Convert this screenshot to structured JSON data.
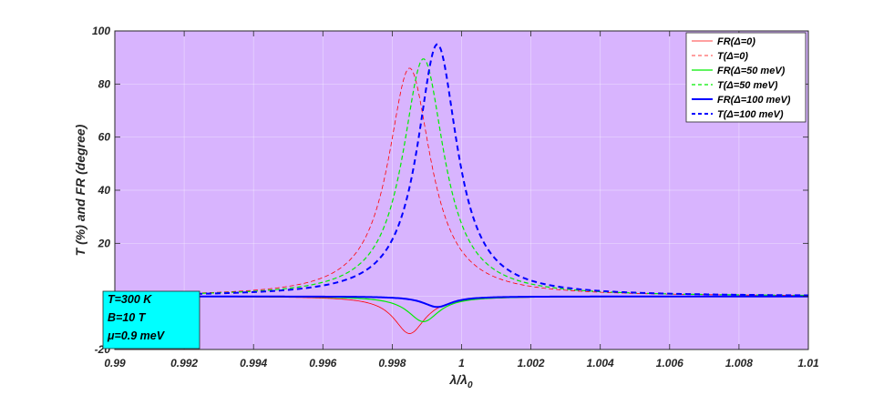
{
  "chart_data": {
    "type": "line",
    "xlabel": "λ/λ",
    "xlabel_sub": "0",
    "ylabel": "T (%) and FR (degree)",
    "xlim": [
      0.99,
      1.01
    ],
    "ylim": [
      -20,
      100
    ],
    "xticks": [
      0.99,
      0.992,
      0.994,
      0.996,
      0.998,
      1,
      1.002,
      1.004,
      1.006,
      1.008,
      1.01
    ],
    "xtick_labels": [
      "0.99",
      "0.992",
      "0.994",
      "0.996",
      "0.998",
      "1",
      "1.002",
      "1.004",
      "1.006",
      "1.008",
      "1.01"
    ],
    "yticks": [
      -20,
      0,
      20,
      40,
      60,
      80,
      100
    ],
    "ytick_labels": [
      "-20",
      "0",
      "20",
      "40",
      "60",
      "80",
      "100"
    ],
    "grid": true,
    "plot_background": "#d8b4fe",
    "legend_position": "top-right",
    "series": [
      {
        "name": "FR(Δ=0)",
        "kind": "FR",
        "center": 0.9985,
        "amplitude": -14,
        "hwhm": 0.00055,
        "color": "#ff0000",
        "dash": "solid",
        "width": 0.8
      },
      {
        "name": "T(Δ=0)",
        "kind": "T",
        "center": 0.9985,
        "amplitude": 86,
        "hwhm": 0.00075,
        "color": "#ff0000",
        "dash": "dashed",
        "width": 0.8
      },
      {
        "name": "FR(Δ=50 meV)",
        "kind": "FR",
        "center": 0.9989,
        "amplitude": -9.5,
        "hwhm": 0.00055,
        "color": "#00ee00",
        "dash": "solid",
        "width": 1.2
      },
      {
        "name": "T(Δ=50 meV)",
        "kind": "T",
        "center": 0.9989,
        "amplitude": 89.5,
        "hwhm": 0.00073,
        "color": "#00ee00",
        "dash": "dashed",
        "width": 1.2
      },
      {
        "name": "FR(Δ=100 meV)",
        "kind": "FR",
        "center": 0.9993,
        "amplitude": -4,
        "hwhm": 0.0005,
        "color": "#0000ff",
        "dash": "solid",
        "width": 2
      },
      {
        "name": "T(Δ=100 meV)",
        "kind": "T",
        "center": 0.9993,
        "amplitude": 95,
        "hwhm": 0.0007,
        "color": "#0000ff",
        "dash": "dashed",
        "width": 2
      }
    ],
    "sampled_points": {
      "x": [
        0.99,
        0.994,
        0.996,
        0.997,
        0.998,
        0.9985,
        0.999,
        0.9993,
        1.0,
        1.002,
        1.006,
        1.01
      ],
      "T(Δ=0)": [
        0.8,
        3.3,
        10.6,
        25.8,
        65.6,
        86,
        65.6,
        42.4,
        15.0,
        2.6,
        0.6,
        0.3
      ],
      "T(Δ=50 meV)": [
        0.7,
        2.8,
        8.6,
        19.1,
        49.3,
        78.7,
        89.1,
        75.2,
        25.5,
        3.2,
        0.7,
        0.3
      ],
      "T(Δ=100 meV)": [
        0.7,
        2.7,
        7.3,
        14.6,
        31.7,
        52.6,
        80.1,
        95,
        46.8,
        4.3,
        0.7,
        0.3
      ],
      "FR(Δ=0)": [
        -0.1,
        -0.5,
        -1.4,
        -3.3,
        -7.0,
        -14.0,
        -7.0,
        -4.4,
        -1.5,
        -0.3,
        -0.1,
        0.0
      ],
      "FR(Δ=50 meV)": [
        -0.1,
        -0.3,
        -0.8,
        -1.8,
        -4.8,
        -7.7,
        -9.5,
        -7.2,
        -2.5,
        -0.3,
        -0.1,
        0.0
      ],
      "FR(Δ=100 meV)": [
        0.0,
        -0.1,
        -0.3,
        -0.6,
        -1.0,
        -1.9,
        -3.0,
        -4.0,
        -1.2,
        -0.1,
        0.0,
        0.0
      ]
    },
    "annotation": {
      "lines": [
        "T=300 K",
        "B=10 T",
        "μ=0.9 meV"
      ],
      "background": "#00ffff"
    }
  }
}
